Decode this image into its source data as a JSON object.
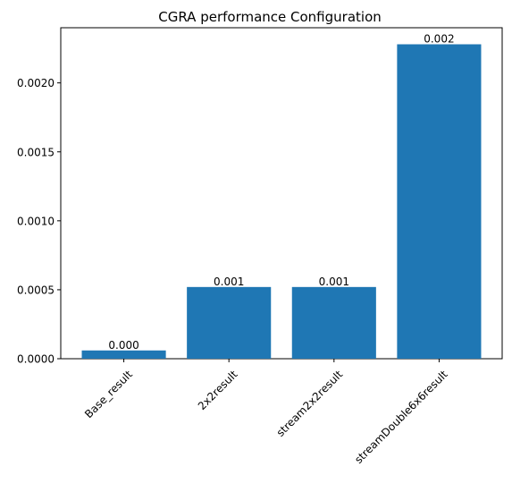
{
  "chart_data": {
    "type": "bar",
    "title": "CGRA performance Configuration",
    "xlabel": "",
    "ylabel": "",
    "categories": [
      "Base_result",
      "2x2result",
      "stream2x2result",
      "streamDouble6x6result"
    ],
    "values": [
      6e-05,
      0.00052,
      0.00052,
      0.00228
    ],
    "bar_labels": [
      "0.000",
      "0.001",
      "0.001",
      "0.002"
    ],
    "ylim": [
      0,
      0.0024
    ],
    "yticks": [
      0,
      0.0005,
      0.001,
      0.0015,
      0.002
    ],
    "ytick_labels": [
      "0.0000",
      "0.0005",
      "0.0010",
      "0.0015",
      "0.0020"
    ],
    "x_tick_rotation_deg": 45,
    "bar_color": "#1f77b4",
    "grid": false,
    "legend": "none"
  }
}
